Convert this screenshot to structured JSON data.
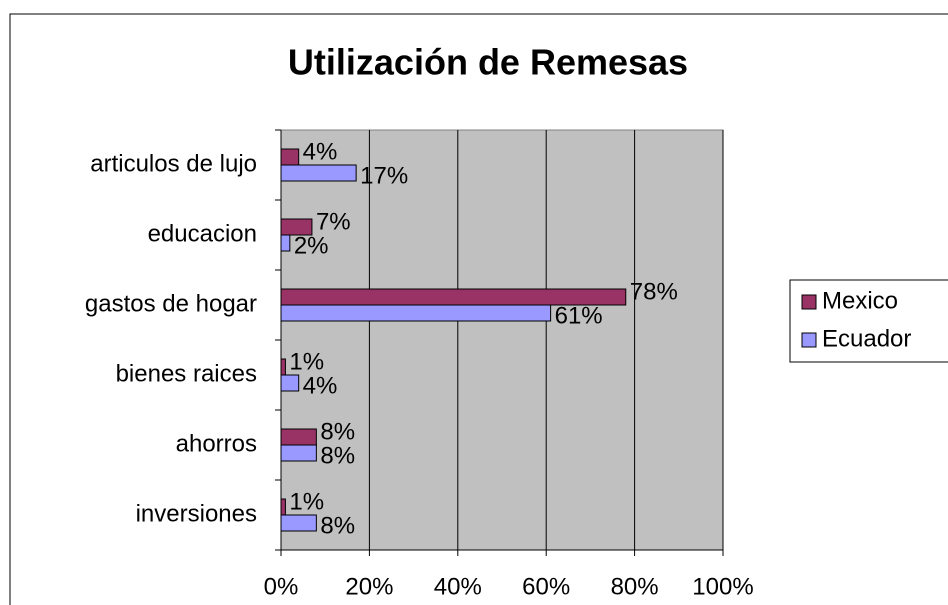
{
  "chart_data": {
    "type": "bar",
    "orientation": "horizontal",
    "title": "Utilización de Remesas",
    "categories": [
      "articulos de lujo",
      "educacion",
      "gastos de hogar",
      "bienes raices",
      "ahorros",
      "inversiones"
    ],
    "series": [
      {
        "name": "Mexico",
        "color": "#993366",
        "values": [
          4,
          7,
          78,
          1,
          8,
          1
        ],
        "value_labels": [
          "4%",
          "7%",
          "78%",
          "1%",
          "8%",
          "1%"
        ]
      },
      {
        "name": "Ecuador",
        "color": "#9999ff",
        "values": [
          17,
          2,
          61,
          4,
          8,
          8
        ],
        "value_labels": [
          "17%",
          "2%",
          "61%",
          "4%",
          "8%",
          "8%"
        ]
      }
    ],
    "xlim": [
      0,
      100
    ],
    "xticks": [
      {
        "value": 0,
        "label": "0%"
      },
      {
        "value": 20,
        "label": "20%"
      },
      {
        "value": 40,
        "label": "40%"
      },
      {
        "value": 60,
        "label": "60%"
      },
      {
        "value": 80,
        "label": "80%"
      },
      {
        "value": 100,
        "label": "100%"
      }
    ],
    "grid": true,
    "legend": "right"
  }
}
